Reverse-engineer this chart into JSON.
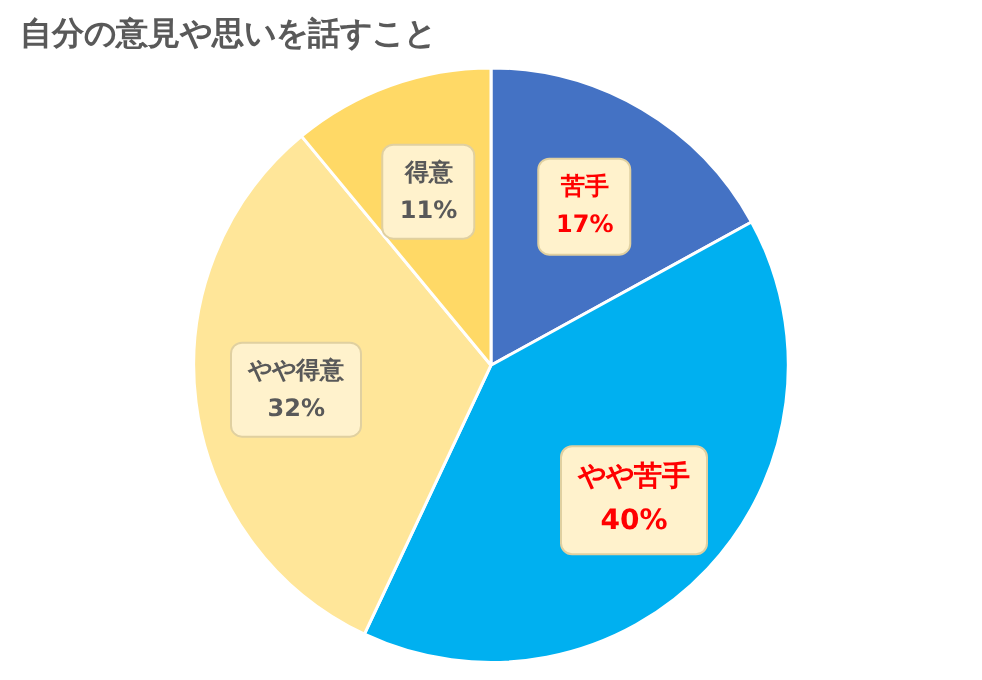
{
  "chart_data": {
    "type": "pie",
    "title": "自分の意見や思いを話すこと",
    "categories": [
      "苦手",
      "やや苦手",
      "やや得意",
      "得意"
    ],
    "values": [
      17,
      40,
      32,
      11
    ],
    "value_labels": [
      "17%",
      "40%",
      "32%",
      "11%"
    ],
    "colors": [
      "#4472c4",
      "#00b0f0",
      "#ffe699",
      "#ffd966"
    ],
    "legend": false
  }
}
